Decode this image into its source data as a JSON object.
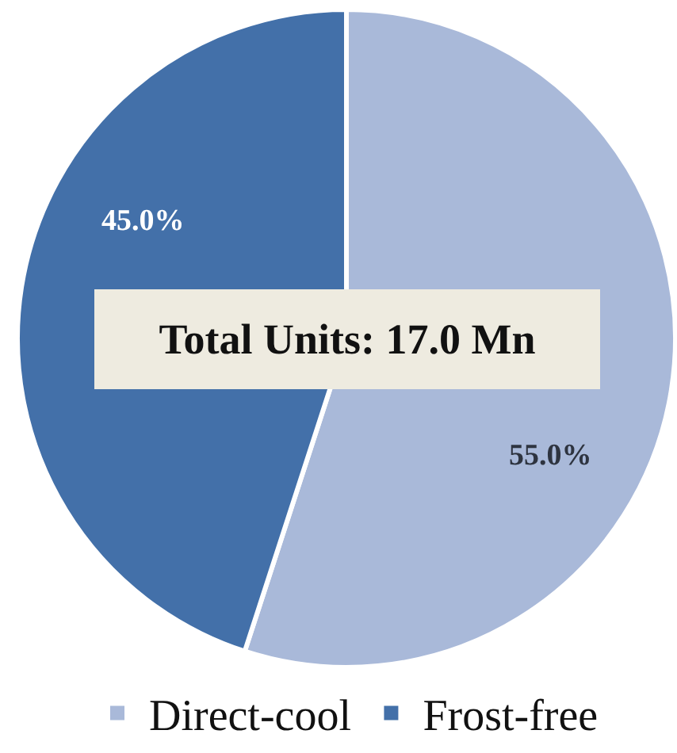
{
  "chart_data": {
    "type": "pie",
    "categories": [
      "Direct-cool",
      "Frost-free"
    ],
    "values": [
      55,
      45
    ],
    "colors": [
      "#a9b9d9",
      "#4370a9"
    ],
    "value_labels": [
      "55.0%",
      "45.0%"
    ],
    "annotations": [
      "Total Units: 17.0 Mn"
    ],
    "legend": "bottom"
  }
}
